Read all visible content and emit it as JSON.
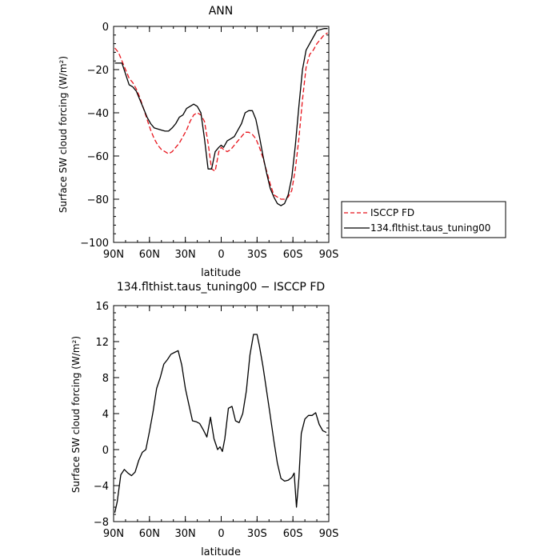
{
  "chart_data": [
    {
      "type": "line",
      "title": "ANN",
      "xlabel": "latitude",
      "ylabel": "Surface SW cloud forcing (W/m²)",
      "xlim": [
        90,
        -90
      ],
      "ylim": [
        -100,
        0
      ],
      "x_ticks": [
        90,
        60,
        30,
        0,
        -30,
        -60,
        -90
      ],
      "x_tick_labels": [
        "90N",
        "60N",
        "30N",
        "0",
        "30S",
        "60S",
        "90S"
      ],
      "y_ticks": [
        0,
        -20,
        -40,
        -60,
        -80,
        -100
      ],
      "y_tick_labels": [
        "0",
        "−20",
        "−40",
        "−60",
        "−80",
        "−100"
      ],
      "legend_position": "right",
      "series": [
        {
          "name": "ISCCP FD",
          "color": "#e8141c",
          "dash": true,
          "x": [
            89,
            86,
            83,
            80,
            77,
            74,
            71,
            68,
            65,
            62,
            59,
            56,
            53,
            50,
            47,
            44,
            41,
            38,
            35,
            32,
            29,
            26,
            23,
            20,
            17,
            14,
            11,
            8,
            5,
            2,
            0,
            -2,
            -5,
            -8,
            -11,
            -14,
            -17,
            -20,
            -23,
            -26,
            -29,
            -32,
            -35,
            -38,
            -41,
            -44,
            -47,
            -50,
            -53,
            -56,
            -59,
            -62,
            -65,
            -68,
            -71,
            -74,
            -77,
            -80,
            -83,
            -86,
            -89
          ],
          "y": [
            -10,
            -12,
            -16,
            -20,
            -24,
            -26,
            -29,
            -33,
            -38,
            -43,
            -48,
            -52,
            -55,
            -57,
            -58,
            -59,
            -58,
            -56,
            -54,
            -51,
            -48,
            -44,
            -41,
            -40,
            -41,
            -44,
            -54,
            -66,
            -67,
            -58,
            -56,
            -57,
            -58,
            -57,
            -55,
            -53,
            -51,
            -49,
            -49,
            -50,
            -52,
            -56,
            -61,
            -67,
            -73,
            -78,
            -79,
            -80,
            -80,
            -79,
            -76,
            -66,
            -52,
            -34,
            -19,
            -13,
            -11,
            -8,
            -6,
            -4,
            -3
          ]
        },
        {
          "name": "134.flthist.taus_tuning00",
          "color": "#000000",
          "dash": false,
          "x": [
            89,
            86,
            83,
            80,
            77,
            74,
            71,
            68,
            65,
            62,
            59,
            56,
            53,
            50,
            47,
            44,
            41,
            38,
            35,
            32,
            29,
            26,
            23,
            20,
            17,
            14,
            11,
            8,
            5,
            2,
            0,
            -2,
            -5,
            -8,
            -11,
            -14,
            -17,
            -20,
            -23,
            -26,
            -29,
            -32,
            -35,
            -38,
            -41,
            -44,
            -47,
            -50,
            -53,
            -56,
            -59,
            -62,
            -65,
            -68,
            -71,
            -74,
            -77,
            -80,
            -83,
            -86,
            -89
          ],
          "y": [
            -17,
            -17,
            -17,
            -22,
            -27,
            -28,
            -30,
            -34,
            -38,
            -42,
            -45,
            -47,
            -47.5,
            -48,
            -48.5,
            -48.5,
            -47,
            -45,
            -42,
            -41,
            -38,
            -37,
            -36,
            -37,
            -40,
            -52,
            -66,
            -66,
            -58,
            -56,
            -55,
            -56,
            -53,
            -52,
            -51,
            -48,
            -45,
            -40,
            -39,
            -39,
            -43,
            -51,
            -60,
            -68,
            -75,
            -79,
            -82,
            -83,
            -82,
            -78,
            -70,
            -55,
            -37,
            -20,
            -11,
            -8,
            -5,
            -2,
            -1.5,
            -1,
            -1
          ]
        }
      ]
    },
    {
      "type": "line",
      "title": "134.flthist.taus_tuning00 − ISCCP FD",
      "xlabel": "latitude",
      "ylabel": "Surface SW cloud forcing (W/m²)",
      "xlim": [
        90,
        -90
      ],
      "ylim": [
        -8,
        16
      ],
      "x_ticks": [
        90,
        60,
        30,
        0,
        -30,
        -60,
        -90
      ],
      "x_tick_labels": [
        "90N",
        "60N",
        "30N",
        "0",
        "30S",
        "60S",
        "90S"
      ],
      "y_ticks": [
        16,
        12,
        8,
        4,
        0,
        -4,
        -8
      ],
      "y_tick_labels": [
        "16",
        "12",
        "8",
        "4",
        "0",
        "−4",
        "−8"
      ],
      "series": [
        {
          "color": "#000000",
          "dash": false,
          "x": [
            89,
            87,
            84,
            81,
            78,
            75,
            72,
            69,
            66,
            63,
            60,
            57,
            54,
            51,
            48,
            45,
            42,
            39,
            36,
            33,
            30,
            27,
            24,
            21,
            18,
            15,
            12,
            9,
            6,
            3,
            1,
            -1,
            -3,
            -6,
            -9,
            -12,
            -15,
            -18,
            -21,
            -24,
            -27,
            -30,
            -32,
            -35,
            -38,
            -41,
            -44,
            -47,
            -50,
            -53,
            -56,
            -59,
            -61,
            -63,
            -65,
            -67,
            -70,
            -73,
            -76,
            -79,
            -82,
            -85,
            -88
          ],
          "y": [
            -7,
            -5.8,
            -2.8,
            -2.2,
            -2.6,
            -2.9,
            -2.5,
            -1.2,
            -0.3,
            0,
            2,
            4.2,
            6.8,
            8,
            9.5,
            10,
            10.6,
            10.8,
            11,
            9.4,
            6.8,
            5,
            3.2,
            3.1,
            2.9,
            2.2,
            1.4,
            3.6,
            1.2,
            0,
            0.3,
            -0.2,
            1.2,
            4.6,
            4.8,
            3.2,
            3,
            4,
            6.5,
            10.5,
            12.8,
            12.8,
            11.5,
            9.2,
            6.5,
            3.8,
            1,
            -1.5,
            -3.2,
            -3.5,
            -3.4,
            -3.1,
            -2.6,
            -6.4,
            -3.2,
            1.8,
            3.4,
            3.8,
            3.8,
            4.1,
            2.8,
            2.1,
            1.9
          ]
        }
      ]
    }
  ]
}
